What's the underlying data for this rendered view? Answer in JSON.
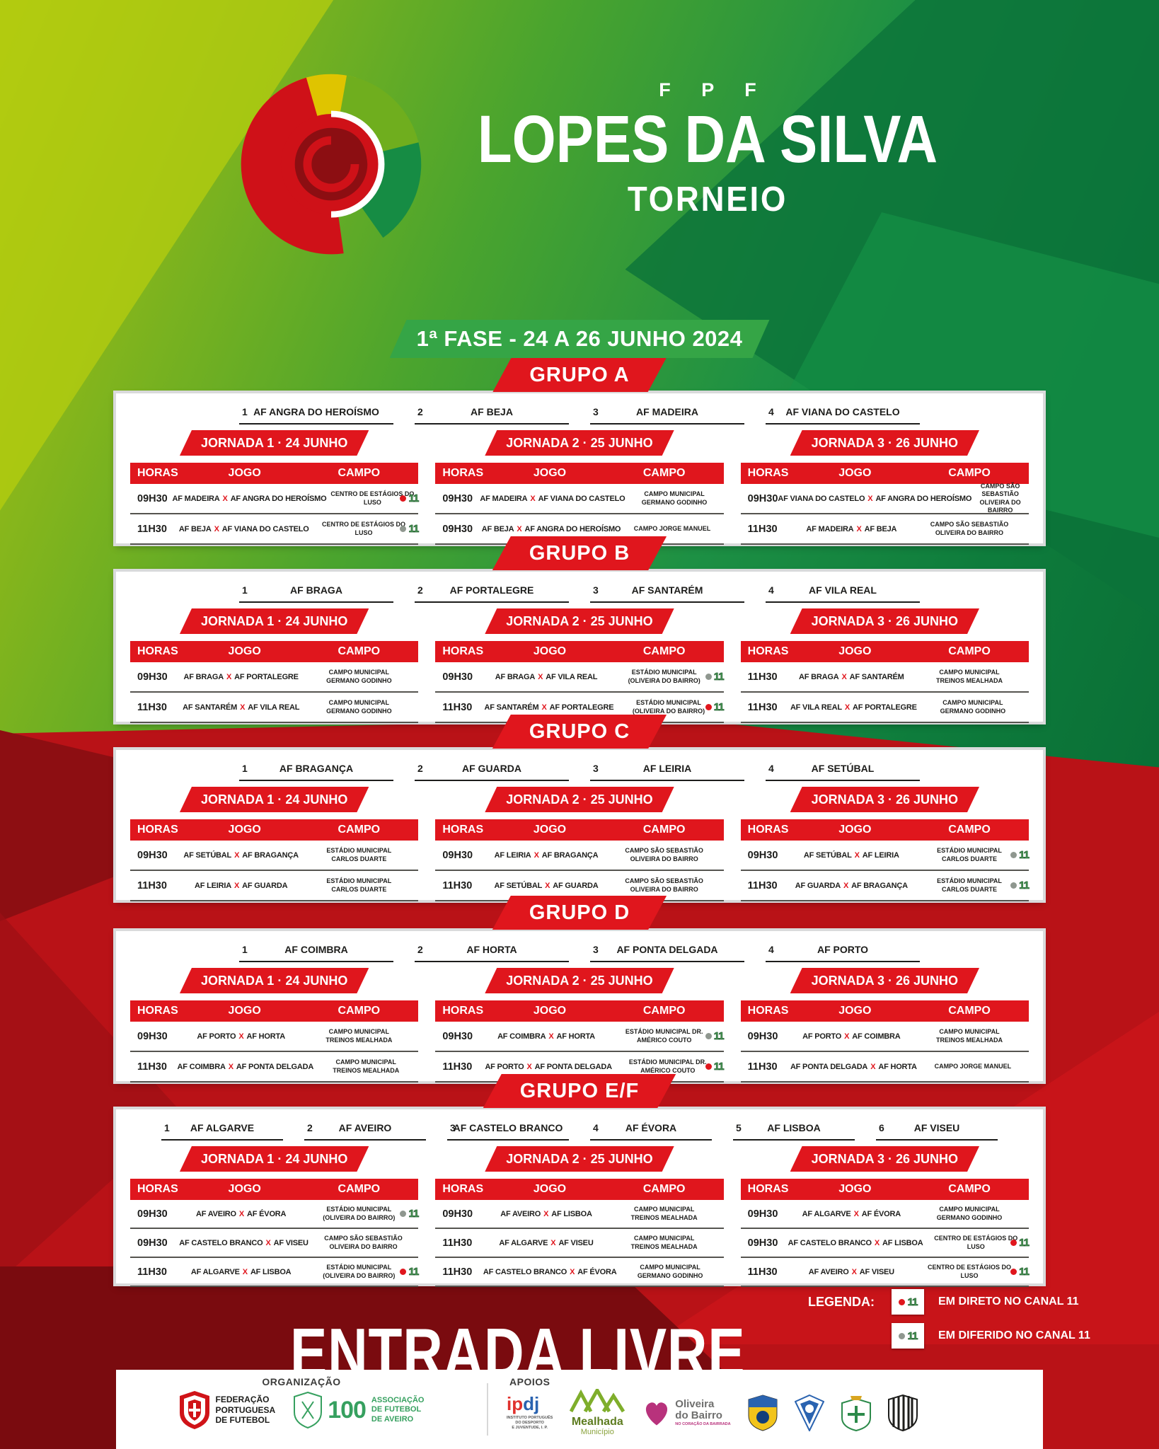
{
  "header": {
    "fpf": "F P F",
    "title": "LOPES DA SILVA",
    "subtitle": "TORNEIO",
    "phase_banner": "1ª FASE - 24 A 26 JUNHO 2024"
  },
  "labels": {
    "horas": "HORAS",
    "jogo": "JOGO",
    "campo": "CAMPO",
    "vs": "X"
  },
  "groups": [
    {
      "name": "GRUPO A",
      "teams": [
        {
          "num": "1",
          "name": "AF ANGRA DO HEROÍSMO"
        },
        {
          "num": "2",
          "name": "AF BEJA"
        },
        {
          "num": "3",
          "name": "AF MADEIRA"
        },
        {
          "num": "4",
          "name": "AF VIANA DO CASTELO"
        }
      ],
      "jornadas": [
        {
          "title": "JORNADA 1 · 24 JUNHO",
          "rows": [
            {
              "time": "09H30",
              "home": "AF MADEIRA",
              "away": "AF ANGRA DO HEROÍSMO",
              "venue": "CENTRO DE ESTÁGIOS DO LUSO",
              "tv": "direto"
            },
            {
              "time": "11H30",
              "home": "AF BEJA",
              "away": "AF VIANA DO CASTELO",
              "venue": "CENTRO DE ESTÁGIOS DO LUSO",
              "tv": "diferido"
            }
          ]
        },
        {
          "title": "JORNADA 2 · 25 JUNHO",
          "rows": [
            {
              "time": "09H30",
              "home": "AF MADEIRA",
              "away": "AF VIANA DO CASTELO",
              "venue": "CAMPO MUNICIPAL GERMANO GODINHO",
              "tv": null
            },
            {
              "time": "09H30",
              "home": "AF BEJA",
              "away": "AF ANGRA DO HEROÍSMO",
              "venue": "CAMPO JORGE MANUEL",
              "tv": null
            }
          ]
        },
        {
          "title": "JORNADA 3 · 26 JUNHO",
          "rows": [
            {
              "time": "09H30",
              "home": "AF VIANA DO CASTELO",
              "away": "AF ANGRA DO HEROÍSMO",
              "venue": "CAMPO SÃO SEBASTIÃO OLIVEIRA DO BAIRRO",
              "tv": null
            },
            {
              "time": "11H30",
              "home": "AF MADEIRA",
              "away": "AF BEJA",
              "venue": "CAMPO SÃO SEBASTIÃO OLIVEIRA DO BAIRRO",
              "tv": null
            }
          ]
        }
      ]
    },
    {
      "name": "GRUPO B",
      "teams": [
        {
          "num": "1",
          "name": "AF BRAGA"
        },
        {
          "num": "2",
          "name": "AF PORTALEGRE"
        },
        {
          "num": "3",
          "name": "AF SANTARÉM"
        },
        {
          "num": "4",
          "name": "AF VILA REAL"
        }
      ],
      "jornadas": [
        {
          "title": "JORNADA 1 · 24 JUNHO",
          "rows": [
            {
              "time": "09H30",
              "home": "AF BRAGA",
              "away": "AF PORTALEGRE",
              "venue": "CAMPO MUNICIPAL GERMANO GODINHO",
              "tv": null
            },
            {
              "time": "11H30",
              "home": "AF SANTARÉM",
              "away": "AF VILA REAL",
              "venue": "CAMPO MUNICIPAL GERMANO GODINHO",
              "tv": null
            }
          ]
        },
        {
          "title": "JORNADA 2 · 25 JUNHO",
          "rows": [
            {
              "time": "09H30",
              "home": "AF BRAGA",
              "away": "AF VILA REAL",
              "venue": "ESTÁDIO MUNICIPAL (OLIVEIRA DO BAIRRO)",
              "tv": "diferido"
            },
            {
              "time": "11H30",
              "home": "AF SANTARÉM",
              "away": "AF PORTALEGRE",
              "venue": "ESTÁDIO MUNICIPAL (OLIVEIRA DO BAIRRO)",
              "tv": "direto"
            }
          ]
        },
        {
          "title": "JORNADA 3 · 26 JUNHO",
          "rows": [
            {
              "time": "11H30",
              "home": "AF BRAGA",
              "away": "AF SANTARÉM",
              "venue": "CAMPO MUNICIPAL TREINOS MEALHADA",
              "tv": null
            },
            {
              "time": "11H30",
              "home": "AF VILA REAL",
              "away": "AF PORTALEGRE",
              "venue": "CAMPO MUNICIPAL GERMANO GODINHO",
              "tv": null
            }
          ]
        }
      ]
    },
    {
      "name": "GRUPO C",
      "teams": [
        {
          "num": "1",
          "name": "AF BRAGANÇA"
        },
        {
          "num": "2",
          "name": "AF GUARDA"
        },
        {
          "num": "3",
          "name": "AF LEIRIA"
        },
        {
          "num": "4",
          "name": "AF SETÚBAL"
        }
      ],
      "jornadas": [
        {
          "title": "JORNADA 1 · 24 JUNHO",
          "rows": [
            {
              "time": "09H30",
              "home": "AF SETÚBAL",
              "away": "AF BRAGANÇA",
              "venue": "ESTÁDIO MUNICIPAL CARLOS DUARTE",
              "tv": null
            },
            {
              "time": "11H30",
              "home": "AF LEIRIA",
              "away": "AF GUARDA",
              "venue": "ESTÁDIO MUNICIPAL CARLOS DUARTE",
              "tv": null
            }
          ]
        },
        {
          "title": "JORNADA 2 · 25 JUNHO",
          "rows": [
            {
              "time": "09H30",
              "home": "AF LEIRIA",
              "away": "AF BRAGANÇA",
              "venue": "CAMPO SÃO SEBASTIÃO OLIVEIRA DO BAIRRO",
              "tv": null
            },
            {
              "time": "11H30",
              "home": "AF SETÚBAL",
              "away": "AF GUARDA",
              "venue": "CAMPO SÃO SEBASTIÃO OLIVEIRA DO BAIRRO",
              "tv": null
            }
          ]
        },
        {
          "title": "JORNADA 3 · 26 JUNHO",
          "rows": [
            {
              "time": "09H30",
              "home": "AF SETÚBAL",
              "away": "AF LEIRIA",
              "venue": "ESTÁDIO MUNICIPAL CARLOS DUARTE",
              "tv": "diferido"
            },
            {
              "time": "11H30",
              "home": "AF GUARDA",
              "away": "AF BRAGANÇA",
              "venue": "ESTÁDIO MUNICIPAL CARLOS DUARTE",
              "tv": "diferido"
            }
          ]
        }
      ]
    },
    {
      "name": "GRUPO D",
      "teams": [
        {
          "num": "1",
          "name": "AF COIMBRA"
        },
        {
          "num": "2",
          "name": "AF HORTA"
        },
        {
          "num": "3",
          "name": "AF PONTA DELGADA"
        },
        {
          "num": "4",
          "name": "AF PORTO"
        }
      ],
      "jornadas": [
        {
          "title": "JORNADA 1 · 24 JUNHO",
          "rows": [
            {
              "time": "09H30",
              "home": "AF PORTO",
              "away": "AF HORTA",
              "venue": "CAMPO MUNICIPAL TREINOS MEALHADA",
              "tv": null
            },
            {
              "time": "11H30",
              "home": "AF COIMBRA",
              "away": "AF PONTA DELGADA",
              "venue": "CAMPO MUNICIPAL TREINOS MEALHADA",
              "tv": null
            }
          ]
        },
        {
          "title": "JORNADA 2 · 25 JUNHO",
          "rows": [
            {
              "time": "09H30",
              "home": "AF COIMBRA",
              "away": "AF HORTA",
              "venue": "ESTÁDIO MUNICIPAL DR. AMÉRICO COUTO",
              "tv": "diferido"
            },
            {
              "time": "11H30",
              "home": "AF PORTO",
              "away": "AF PONTA DELGADA",
              "venue": "ESTÁDIO MUNICIPAL DR. AMÉRICO COUTO",
              "tv": "direto"
            }
          ]
        },
        {
          "title": "JORNADA 3 · 26 JUNHO",
          "rows": [
            {
              "time": "09H30",
              "home": "AF PORTO",
              "away": "AF COIMBRA",
              "venue": "CAMPO MUNICIPAL TREINOS MEALHADA",
              "tv": null
            },
            {
              "time": "11H30",
              "home": "AF PONTA DELGADA",
              "away": "AF HORTA",
              "venue": "CAMPO JORGE MANUEL",
              "tv": null
            }
          ]
        }
      ]
    },
    {
      "name": "GRUPO E/F",
      "teams": [
        {
          "num": "1",
          "name": "AF ALGARVE"
        },
        {
          "num": "2",
          "name": "AF AVEIRO"
        },
        {
          "num": "3",
          "name": "AF CASTELO BRANCO"
        },
        {
          "num": "4",
          "name": "AF ÉVORA"
        },
        {
          "num": "5",
          "name": "AF LISBOA"
        },
        {
          "num": "6",
          "name": "AF VISEU"
        }
      ],
      "jornadas": [
        {
          "title": "JORNADA 1 · 24 JUNHO",
          "rows": [
            {
              "time": "09H30",
              "home": "AF AVEIRO",
              "away": "AF ÉVORA",
              "venue": "ESTÁDIO MUNICIPAL (OLIVEIRA DO BAIRRO)",
              "tv": "diferido"
            },
            {
              "time": "09H30",
              "home": "AF CASTELO BRANCO",
              "away": "AF VISEU",
              "venue": "CAMPO SÃO SEBASTIÃO OLIVEIRA DO BAIRRO",
              "tv": null
            },
            {
              "time": "11H30",
              "home": "AF ALGARVE",
              "away": "AF LISBOA",
              "venue": "ESTÁDIO MUNICIPAL (OLIVEIRA DO BAIRRO)",
              "tv": "direto"
            }
          ]
        },
        {
          "title": "JORNADA 2 · 25 JUNHO",
          "rows": [
            {
              "time": "09H30",
              "home": "AF AVEIRO",
              "away": "AF LISBOA",
              "venue": "CAMPO MUNICIPAL TREINOS MEALHADA",
              "tv": null
            },
            {
              "time": "11H30",
              "home": "AF ALGARVE",
              "away": "AF VISEU",
              "venue": "CAMPO MUNICIPAL TREINOS MEALHADA",
              "tv": null
            },
            {
              "time": "11H30",
              "home": "AF CASTELO BRANCO",
              "away": "AF ÉVORA",
              "venue": "CAMPO MUNICIPAL GERMANO GODINHO",
              "tv": null
            }
          ]
        },
        {
          "title": "JORNADA 3 · 26 JUNHO",
          "rows": [
            {
              "time": "09H30",
              "home": "AF ALGARVE",
              "away": "AF ÉVORA",
              "venue": "CAMPO MUNICIPAL GERMANO GODINHO",
              "tv": null
            },
            {
              "time": "09H30",
              "home": "AF CASTELO BRANCO",
              "away": "AF LISBOA",
              "venue": "CENTRO DE ESTÁGIOS DO LUSO",
              "tv": "direto"
            },
            {
              "time": "11H30",
              "home": "AF AVEIRO",
              "away": "AF VISEU",
              "venue": "CENTRO DE ESTÁGIOS DO LUSO",
              "tv": "direto"
            }
          ]
        }
      ]
    }
  ],
  "entrada": "ENTRADA LIVRE",
  "legend": {
    "title": "LEGENDA:",
    "canal": "11",
    "items": [
      {
        "dot": "direto",
        "label": "EM DIRETO NO CANAL 11"
      },
      {
        "dot": "diferido",
        "label": "EM DIFERIDO NO CANAL 11"
      }
    ]
  },
  "footer": {
    "organizacao_label": "ORGANIZAÇÃO",
    "apoios_label": "APOIOS",
    "fpf": {
      "lines": [
        "FEDERAÇÃO",
        "PORTUGUESA",
        "DE FUTEBOL"
      ]
    },
    "afa": {
      "number": "100",
      "lines": [
        "ASSOCIAÇÃO",
        "DE FUTEBOL",
        "DE AVEIRO"
      ]
    },
    "ipdj": {
      "wordmark": "ipdj",
      "lines": [
        "INSTITUTO PORTUGUÊS",
        "DO DESPORTO",
        "E JUVENTUDE, I. P."
      ]
    },
    "mealhada": {
      "name": "Mealhada",
      "sub": "Município"
    },
    "oliveira": {
      "name": "Oliveira",
      "name2": "do Bairro",
      "sub": "NO CORAÇÃO DA BAIRRADA"
    }
  },
  "colors": {
    "brand_red": "#e0161d",
    "background_red": "#b91217",
    "maroon": "#7a0b0f",
    "background_green_dark": "#0e7c3c",
    "background_lime": "#aac412",
    "phase_banner_green": "#35a546",
    "canal11_green": "#4c9e57",
    "dot_direto": "#e0161d",
    "dot_diferido": "#8f978f",
    "text_dark": "#1d1d1b"
  }
}
